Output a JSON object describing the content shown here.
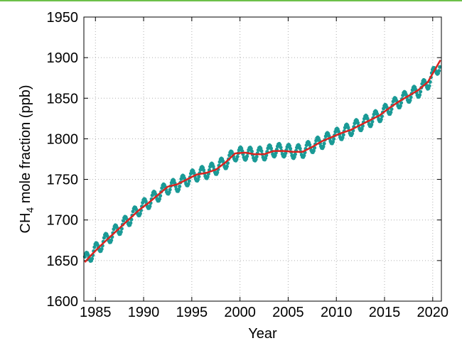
{
  "chart_data": {
    "type": "line",
    "title": "",
    "xlabel": "Year",
    "ylabel": "CH",
    "ylabel_sub": "4",
    "ylabel_rest": " mole fraction (ppb)",
    "xlim": [
      1983.8,
      2020.9
    ],
    "ylim": [
      1600,
      1950
    ],
    "xticks": [
      1985,
      1990,
      1995,
      2000,
      2005,
      2010,
      2015,
      2020
    ],
    "yticks": [
      1600,
      1650,
      1700,
      1750,
      1800,
      1850,
      1900,
      1950
    ],
    "grid": true,
    "legend": "none",
    "colors": {
      "monthly": "#1a9a96",
      "trend": "#d9231f",
      "rule": "#6cc04a"
    },
    "series": [
      {
        "kind": "monthly-markers",
        "seasonal_amplitude": 8,
        "x": [
          1983.9,
          1984.5,
          1985.5,
          1986.5,
          1987.5,
          1988.5,
          1989.5,
          1990.5,
          1991.5,
          1992.5,
          1993.5,
          1994.5,
          1995.5,
          1996.5,
          1997.5,
          1998.5,
          1999.5,
          2000.5,
          2001.5,
          2002.5,
          2003.5,
          2004.5,
          2005.5,
          2006.5,
          2007.5,
          2008.5,
          2009.5,
          2010.5,
          2011.5,
          2012.5,
          2013.5,
          2014.5,
          2015.5,
          2016.5,
          2017.5,
          2018.5,
          2019.5,
          2020.8
        ],
        "values": [
          1650,
          1657,
          1669,
          1680,
          1690,
          1701,
          1713,
          1722,
          1731,
          1740,
          1743,
          1750,
          1756,
          1759,
          1764,
          1771,
          1781,
          1782,
          1781,
          1782,
          1786,
          1786,
          1784,
          1785,
          1791,
          1796,
          1802,
          1807,
          1812,
          1818,
          1823,
          1829,
          1838,
          1846,
          1853,
          1859,
          1869,
          1893
        ]
      },
      {
        "kind": "trend",
        "x": [
          1983.9,
          1984.5,
          1985.5,
          1986.5,
          1987.5,
          1988.5,
          1989.5,
          1990.5,
          1991.5,
          1992.5,
          1993.5,
          1994.5,
          1995.5,
          1996.5,
          1997.5,
          1998.5,
          1999.5,
          2000.5,
          2001.5,
          2002.5,
          2003.5,
          2004.5,
          2005.5,
          2006.5,
          2007.5,
          2008.5,
          2009.5,
          2010.5,
          2011.5,
          2012.5,
          2013.5,
          2014.5,
          2015.5,
          2016.5,
          2017.5,
          2018.5,
          2019.5,
          2020.8
        ],
        "values": [
          1648,
          1656,
          1668,
          1679,
          1690,
          1701,
          1712,
          1721,
          1731,
          1741,
          1744,
          1750,
          1756,
          1758,
          1762,
          1771,
          1782,
          1783,
          1781,
          1781,
          1785,
          1785,
          1784,
          1784,
          1790,
          1797,
          1802,
          1807,
          1811,
          1817,
          1823,
          1829,
          1838,
          1846,
          1853,
          1860,
          1870,
          1897
        ]
      }
    ]
  }
}
